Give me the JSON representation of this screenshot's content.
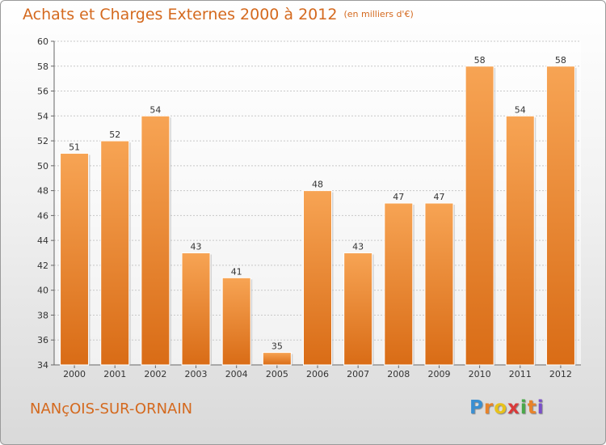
{
  "chart_data": {
    "type": "bar",
    "title": "Achats et Charges Externes 2000 à 2012",
    "subtitle": "(en milliers d'€)",
    "categories": [
      "2000",
      "2001",
      "2002",
      "2003",
      "2004",
      "2005",
      "2006",
      "2007",
      "2008",
      "2009",
      "2010",
      "2011",
      "2012"
    ],
    "values": [
      51,
      52,
      54,
      43,
      41,
      35,
      48,
      43,
      47,
      47,
      58,
      54,
      58
    ],
    "ylim": [
      34,
      60
    ],
    "yticks": [
      "34",
      "36",
      "38",
      "40",
      "42",
      "44",
      "46",
      "48",
      "50",
      "52",
      "54",
      "56",
      "58",
      "60"
    ],
    "grid": true,
    "bar_color": "#e8832a"
  },
  "commune": "NANçOIS-SUR-ORNAIN",
  "logo": {
    "letters": [
      "P",
      "r",
      "o",
      "x",
      "i",
      "t",
      "i"
    ],
    "colors": [
      "#3a8fd1",
      "#e8832a",
      "#e8c21a",
      "#d93a3a",
      "#4aa84a",
      "#e8832a",
      "#7a4fc9"
    ]
  }
}
